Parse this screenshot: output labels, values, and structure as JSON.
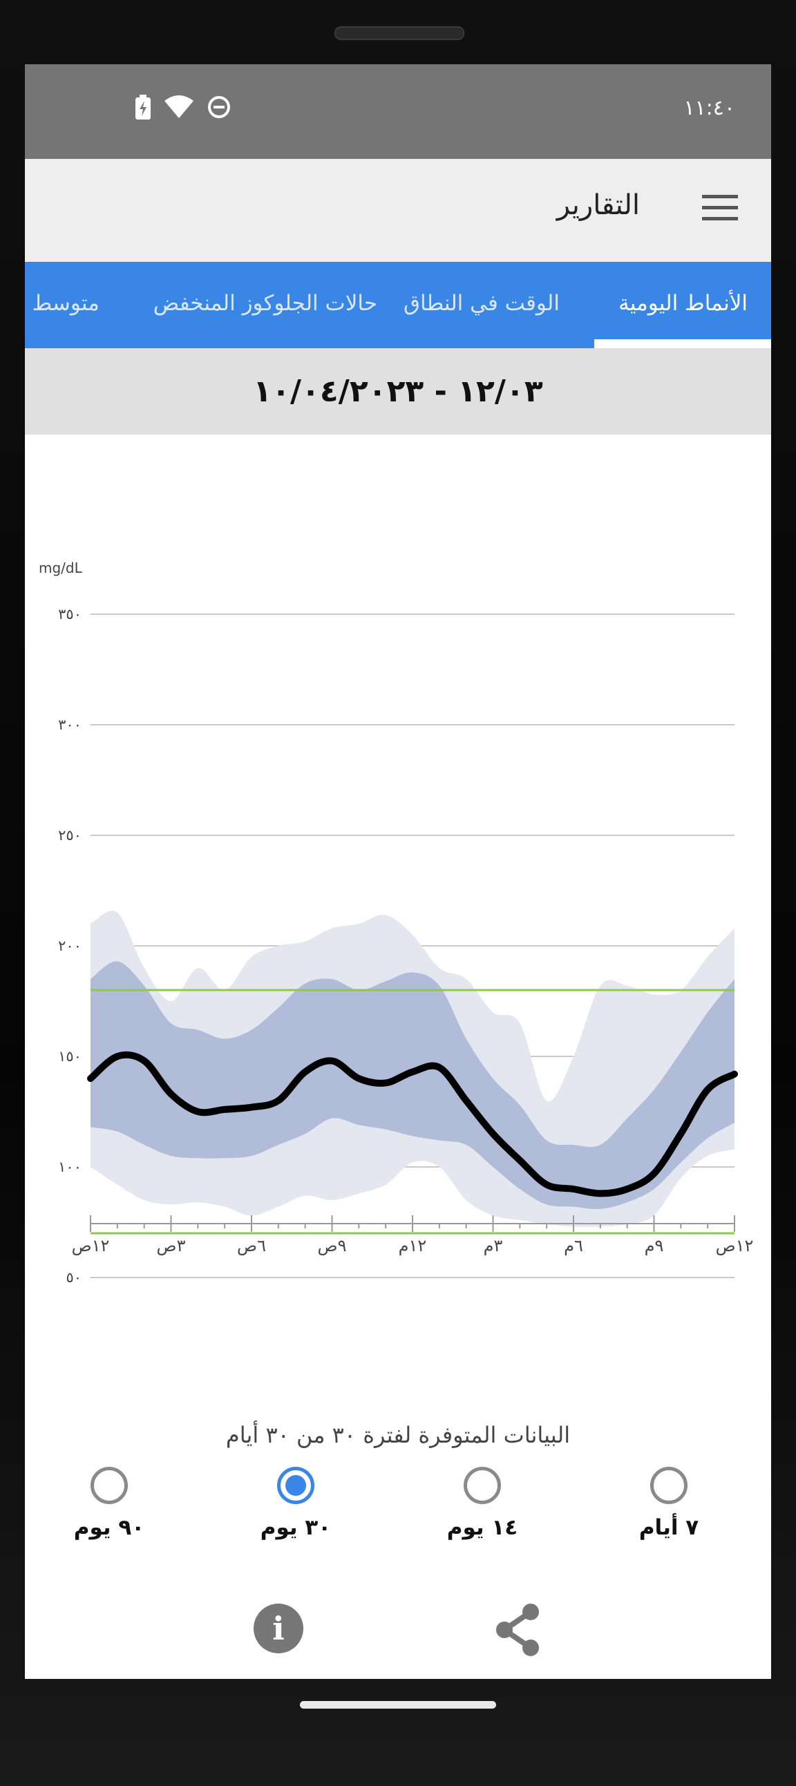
{
  "status_bar": {
    "time": "١١:٤٠"
  },
  "app_bar": {
    "title": "التقارير"
  },
  "tabs": [
    {
      "label": "الأنماط اليومية",
      "active": true
    },
    {
      "label": "الوقت في النطاق",
      "active": false
    },
    {
      "label": "حالات الجلوكوز المنخفض",
      "active": false
    },
    {
      "label": "متوسط ا",
      "active": false
    }
  ],
  "date_range": "١٢/٠٣ - ١٠/٠٤/٢٠٢٣",
  "chart_data": {
    "type": "area",
    "ylabel": "mg/dL",
    "ylim": [
      0,
      350
    ],
    "yticks": [
      {
        "value": 350,
        "label": "٣٥٠"
      },
      {
        "value": 300,
        "label": "٣٠٠"
      },
      {
        "value": 250,
        "label": "٢٥٠"
      },
      {
        "value": 200,
        "label": "٢٠٠"
      },
      {
        "value": 150,
        "label": "١٥٠"
      },
      {
        "value": 100,
        "label": "١٠٠"
      },
      {
        "value": 50,
        "label": "٥٠"
      }
    ],
    "xticks": [
      {
        "hour": 0,
        "label": "١٢ص"
      },
      {
        "hour": 3,
        "label": "٣ص"
      },
      {
        "hour": 6,
        "label": "٦ص"
      },
      {
        "hour": 9,
        "label": "٩ص"
      },
      {
        "hour": 12,
        "label": "١٢م"
      },
      {
        "hour": 15,
        "label": "٣م"
      },
      {
        "hour": 18,
        "label": "٦م"
      },
      {
        "hour": 21,
        "label": "٩م"
      },
      {
        "hour": 24,
        "label": "١٢ص"
      }
    ],
    "target_range": [
      70,
      180
    ],
    "grid": true,
    "hours": [
      0,
      1,
      2,
      3,
      4,
      5,
      6,
      7,
      8,
      9,
      10,
      11,
      12,
      13,
      14,
      15,
      16,
      17,
      18,
      19,
      20,
      21,
      22,
      23,
      24
    ],
    "median": [
      140,
      150,
      148,
      133,
      125,
      126,
      127,
      130,
      143,
      148,
      140,
      138,
      143,
      145,
      130,
      115,
      103,
      92,
      90,
      88,
      90,
      97,
      115,
      135,
      142
    ],
    "p25_p75": {
      "low": [
        118,
        116,
        110,
        105,
        104,
        104,
        105,
        110,
        115,
        122,
        119,
        117,
        114,
        112,
        110,
        100,
        90,
        83,
        82,
        81,
        84,
        90,
        102,
        113,
        120
      ],
      "high": [
        185,
        193,
        182,
        165,
        162,
        158,
        162,
        172,
        183,
        185,
        180,
        184,
        188,
        182,
        158,
        140,
        128,
        112,
        110,
        110,
        122,
        135,
        152,
        170,
        185
      ]
    },
    "p10_p90": {
      "low": [
        100,
        92,
        85,
        83,
        84,
        82,
        78,
        82,
        87,
        85,
        88,
        92,
        102,
        100,
        85,
        78,
        76,
        74,
        73,
        73,
        74,
        78,
        95,
        105,
        108
      ],
      "high": [
        210,
        215,
        190,
        175,
        190,
        180,
        195,
        200,
        202,
        208,
        210,
        214,
        205,
        190,
        185,
        170,
        165,
        130,
        150,
        182,
        182,
        178,
        180,
        195,
        208
      ]
    },
    "colors": {
      "outer_band": "#e4e7f0",
      "inner_band": "#b0bcd8",
      "median": "#000000",
      "target": "#92c84a",
      "grid": "#c9c9c9"
    }
  },
  "availability_text": "البيانات المتوفرة لفترة ٣٠ من ٣٠ أيام",
  "period_options": [
    {
      "label": "٧ أيام",
      "selected": false
    },
    {
      "label": "١٤ يوم",
      "selected": false
    },
    {
      "label": "٣٠ يوم",
      "selected": true
    },
    {
      "label": "٩٠ يوم",
      "selected": false
    }
  ],
  "actions": {
    "info_icon": "info-icon",
    "share_icon": "share-icon"
  }
}
